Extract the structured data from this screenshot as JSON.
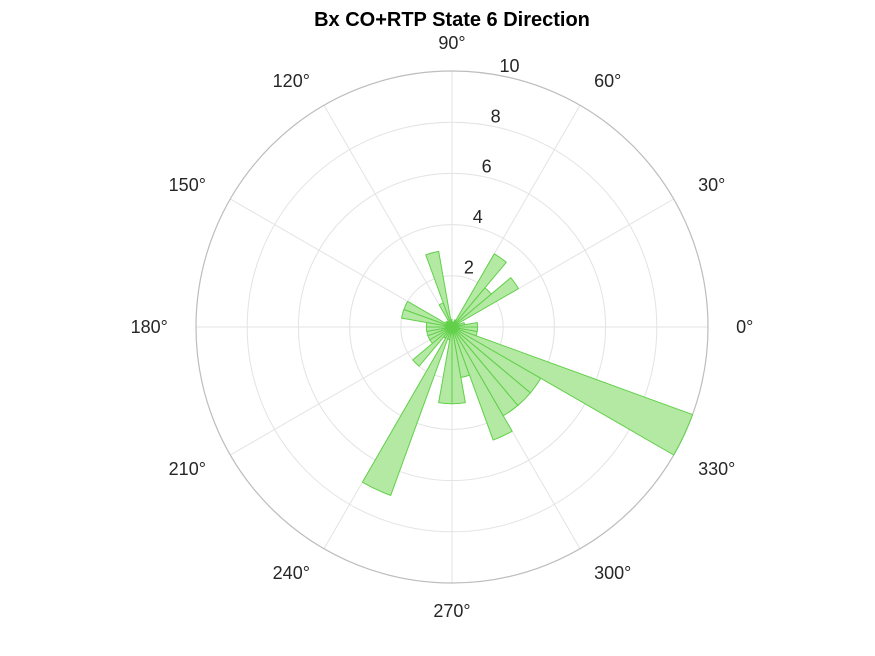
{
  "chart_data": {
    "type": "polar-histogram",
    "title": "Bx  CO+RTP State 6 Direction",
    "r_ticks": [
      2,
      4,
      6,
      8,
      10
    ],
    "r_lim": [
      0,
      10
    ],
    "theta_ticks": [
      0,
      30,
      60,
      90,
      120,
      150,
      180,
      210,
      240,
      270,
      300,
      330
    ],
    "theta_tick_labels": [
      "0°",
      "30°",
      "60°",
      "90°",
      "120°",
      "150°",
      "180°",
      "210°",
      "240°",
      "270°",
      "300°",
      "330°"
    ],
    "theta_zero": "right",
    "theta_direction": "counterclockwise",
    "grid": true,
    "bin_width_deg": 10,
    "bins": [
      {
        "start": 0,
        "end": 10,
        "count": 1.0
      },
      {
        "start": 10,
        "end": 20,
        "count": 0.5
      },
      {
        "start": 20,
        "end": 30,
        "count": 0.3
      },
      {
        "start": 30,
        "end": 40,
        "count": 3.0
      },
      {
        "start": 40,
        "end": 50,
        "count": 2.0
      },
      {
        "start": 50,
        "end": 60,
        "count": 3.3
      },
      {
        "start": 60,
        "end": 70,
        "count": 0.3
      },
      {
        "start": 70,
        "end": 80,
        "count": 0.2
      },
      {
        "start": 80,
        "end": 90,
        "count": 0.2
      },
      {
        "start": 90,
        "end": 100,
        "count": 0.3
      },
      {
        "start": 100,
        "end": 110,
        "count": 3.0
      },
      {
        "start": 110,
        "end": 120,
        "count": 1.0
      },
      {
        "start": 120,
        "end": 130,
        "count": 0.2
      },
      {
        "start": 130,
        "end": 140,
        "count": 0.3
      },
      {
        "start": 140,
        "end": 150,
        "count": 0.3
      },
      {
        "start": 150,
        "end": 160,
        "count": 2.0
      },
      {
        "start": 160,
        "end": 170,
        "count": 2.0
      },
      {
        "start": 170,
        "end": 180,
        "count": 1.0
      },
      {
        "start": 180,
        "end": 190,
        "count": 1.0
      },
      {
        "start": 190,
        "end": 200,
        "count": 1.0
      },
      {
        "start": 200,
        "end": 210,
        "count": 1.0
      },
      {
        "start": 210,
        "end": 220,
        "count": 1.0
      },
      {
        "start": 220,
        "end": 230,
        "count": 2.0
      },
      {
        "start": 230,
        "end": 240,
        "count": 0.5
      },
      {
        "start": 240,
        "end": 250,
        "count": 7.0
      },
      {
        "start": 250,
        "end": 260,
        "count": 0.5
      },
      {
        "start": 260,
        "end": 270,
        "count": 3.0
      },
      {
        "start": 270,
        "end": 280,
        "count": 3.0
      },
      {
        "start": 280,
        "end": 290,
        "count": 2.0
      },
      {
        "start": 290,
        "end": 300,
        "count": 4.7
      },
      {
        "start": 300,
        "end": 310,
        "count": 4.0
      },
      {
        "start": 310,
        "end": 320,
        "count": 4.0
      },
      {
        "start": 320,
        "end": 330,
        "count": 4.0
      },
      {
        "start": 330,
        "end": 340,
        "count": 10.0
      },
      {
        "start": 340,
        "end": 350,
        "count": 1.0
      },
      {
        "start": 350,
        "end": 360,
        "count": 1.0
      }
    ],
    "colors": {
      "bar_fill": "#b3e9a3",
      "bar_edge": "#62d04a",
      "grid": "#e3e3e3",
      "outer_ring": "#bdbdbd"
    }
  }
}
